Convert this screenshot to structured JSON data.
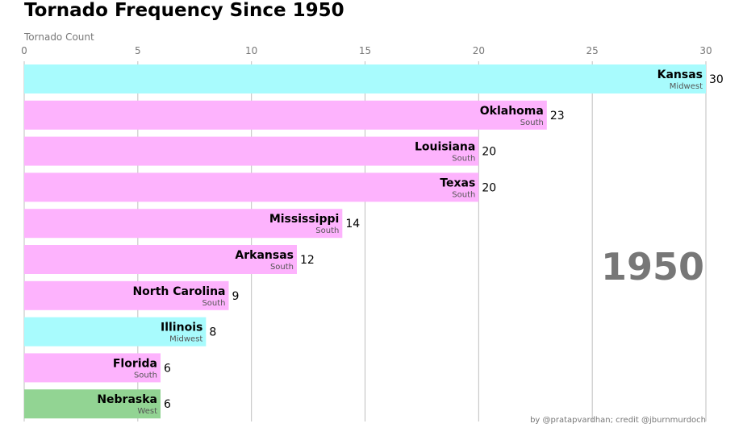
{
  "chart_data": {
    "type": "bar",
    "orientation": "horizontal",
    "title": "Tornado Frequency Since 1950",
    "xlabel": "Tornado Count",
    "xlim": [
      0,
      30
    ],
    "xticks": [
      0,
      5,
      10,
      15,
      20,
      25,
      30
    ],
    "grid": true,
    "categories": [
      "Kansas",
      "Oklahoma",
      "Louisiana",
      "Texas",
      "Mississippi",
      "Arkansas",
      "North Carolina",
      "Illinois",
      "Florida",
      "Nebraska"
    ],
    "groups": [
      "Midwest",
      "South",
      "South",
      "South",
      "South",
      "South",
      "South",
      "Midwest",
      "South",
      "West"
    ],
    "values": [
      30,
      23,
      20,
      20,
      14,
      12,
      9,
      8,
      6,
      6
    ],
    "group_colors": {
      "Midwest": "#a8fbfd",
      "South": "#fdb3fd",
      "West": "#92d493"
    },
    "year_label": "1950",
    "credit": "by @pratapvardhan; credit @jburnmurdoch"
  }
}
